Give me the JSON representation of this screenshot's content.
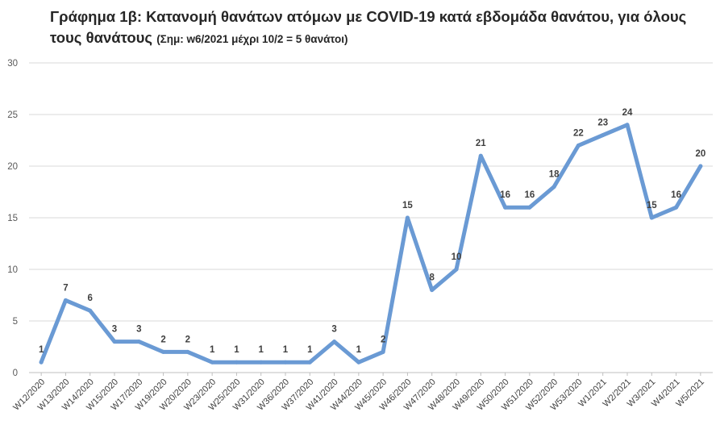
{
  "title": {
    "main": "Γράφημα 1β: Κατανομή θανάτων ατόμων με COVID-19 κατά εβδομάδα θανάτου, για όλους τους θανάτους",
    "note": "(Σημ: w6/2021 μέχρι 10/2 = 5 θανάτοι)"
  },
  "chart_data": {
    "type": "line",
    "categories": [
      "W12/2020",
      "W13/2020",
      "W14/2020",
      "W15/2020",
      "W17/2020",
      "W19/2020",
      "W20/2020",
      "W23/2020",
      "W25/2020",
      "W31/2020",
      "W36/2020",
      "W37/2020",
      "W41/2020",
      "W44/2020",
      "W45/2020",
      "W46/2020",
      "W47/2020",
      "W48/2020",
      "W49/2020",
      "W50/2020",
      "W51/2020",
      "W52/2020",
      "W53/2020",
      "W1/2021",
      "W2/2021",
      "W3/2021",
      "W4/2021",
      "W5/2021"
    ],
    "values": [
      1,
      7,
      6,
      3,
      3,
      2,
      2,
      1,
      1,
      1,
      1,
      1,
      3,
      1,
      2,
      15,
      8,
      10,
      21,
      16,
      16,
      18,
      22,
      23,
      24,
      15,
      16,
      20
    ],
    "ylim": [
      0,
      30
    ],
    "yticks": [
      0,
      5,
      10,
      15,
      20,
      25,
      30
    ],
    "grid": true,
    "line_color": "#6a9ad4",
    "xlabel": "",
    "ylabel": ""
  }
}
